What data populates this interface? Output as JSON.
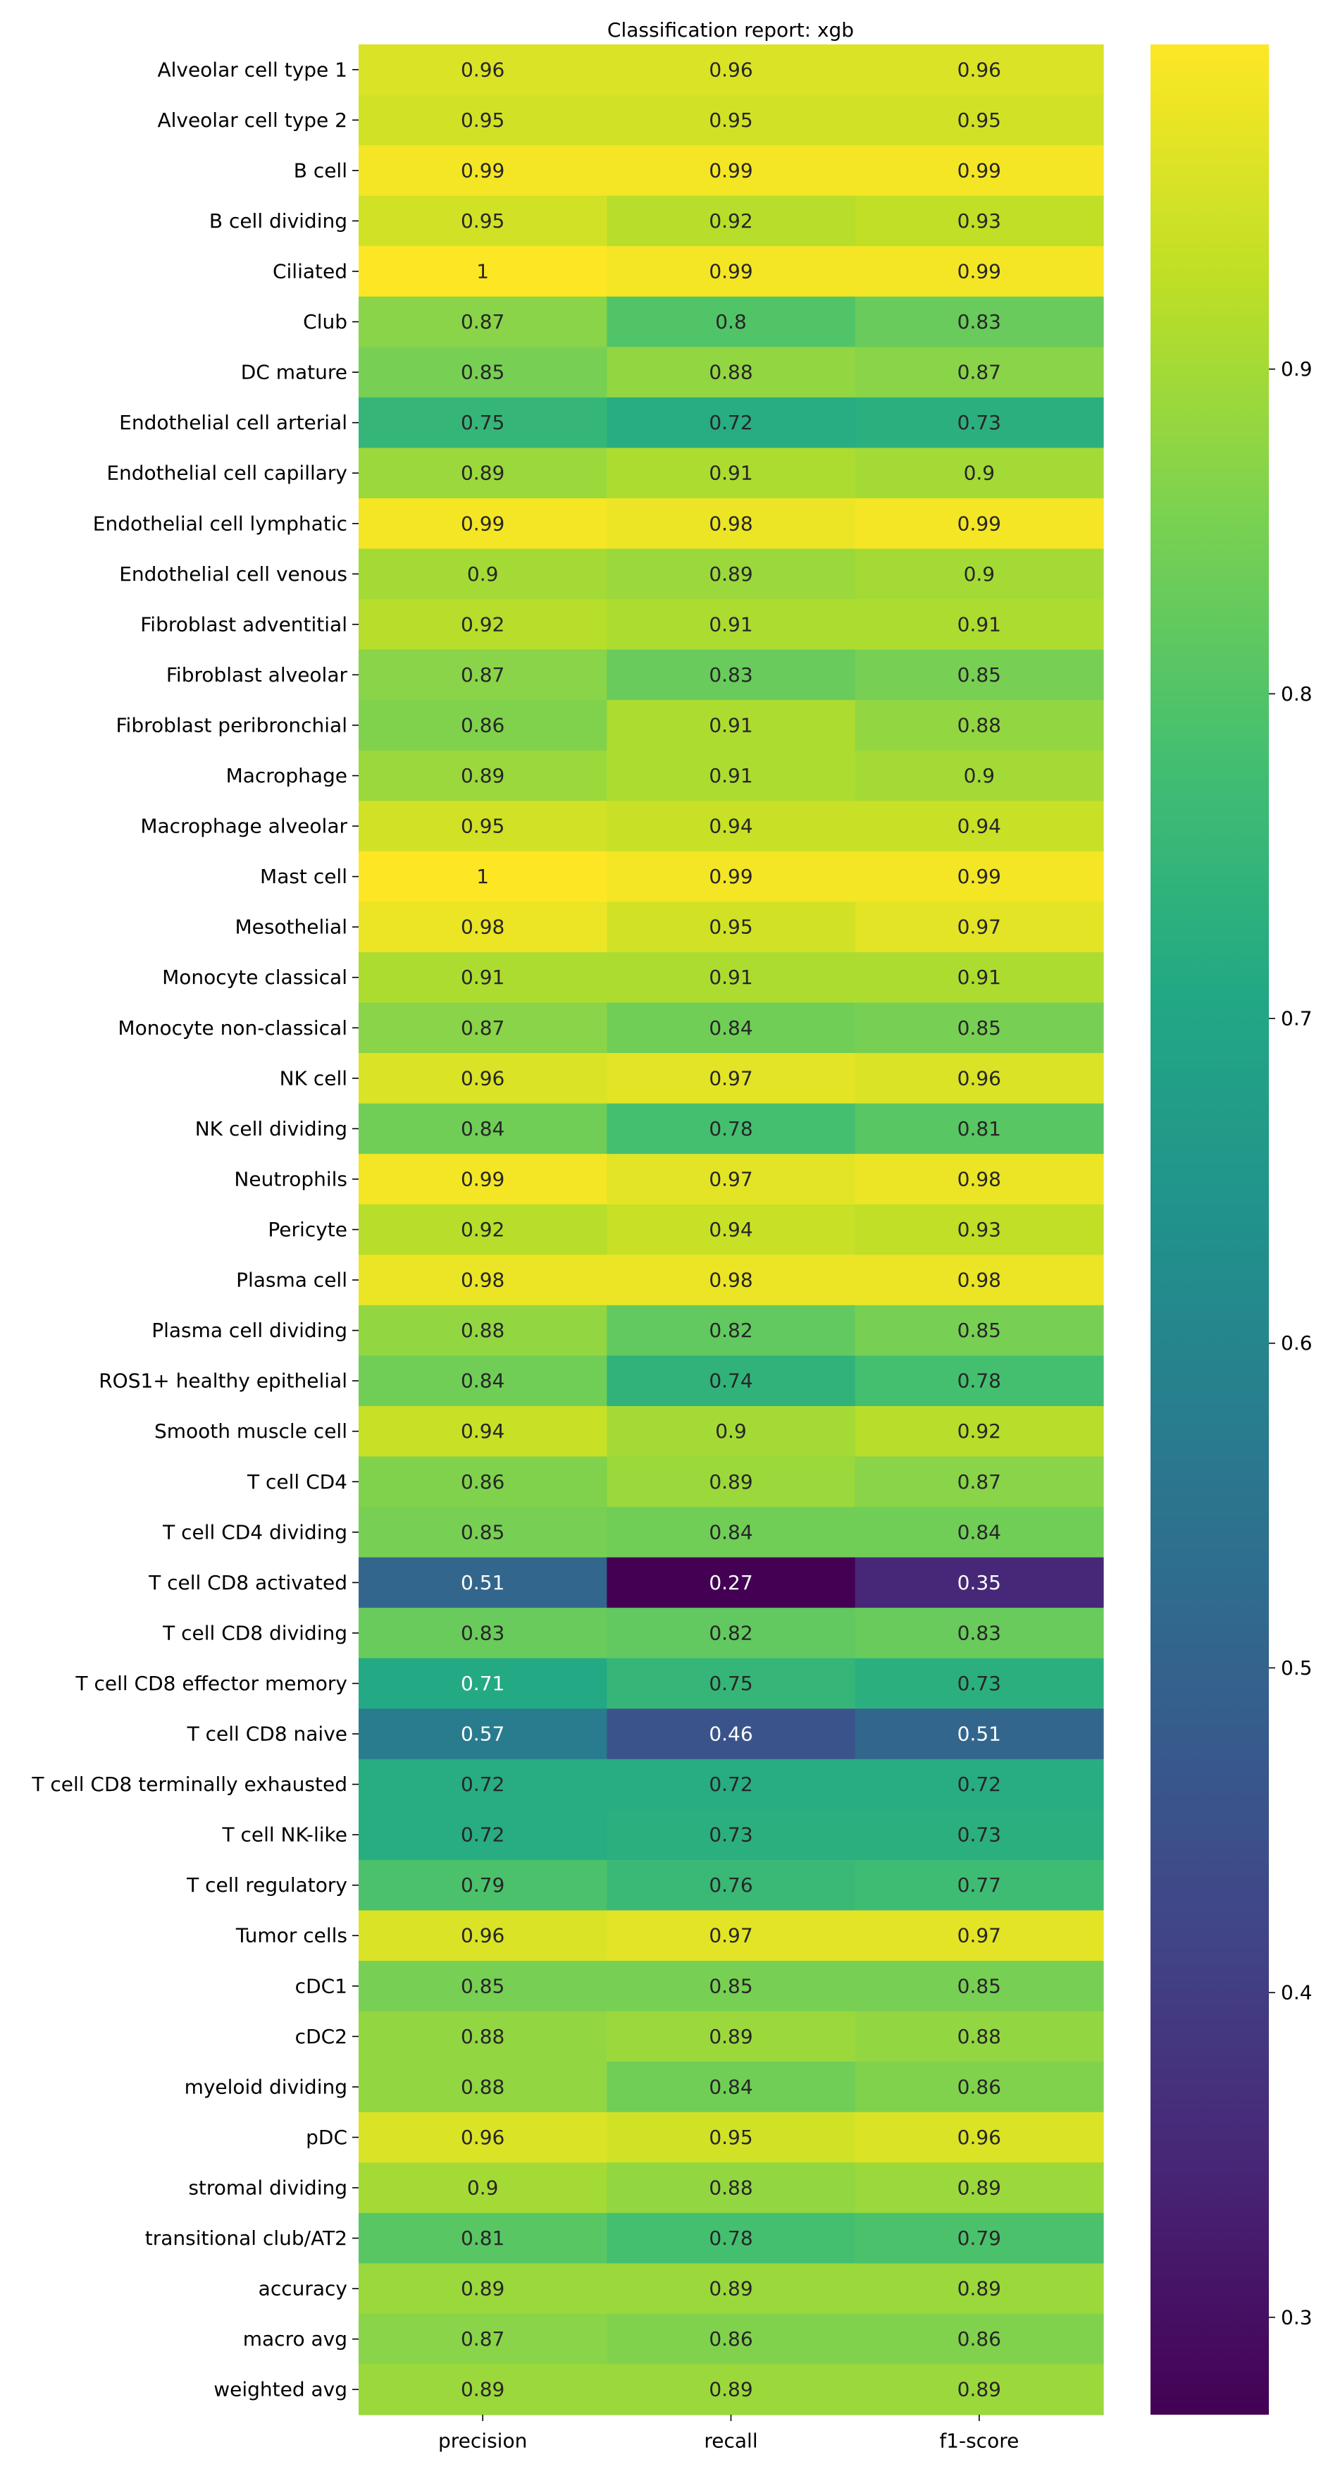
{
  "chart_data": {
    "type": "heatmap",
    "title": "Classification report: xgb",
    "columns": [
      "precision",
      "recall",
      "f1-score"
    ],
    "rows": [
      "Alveolar cell type 1",
      "Alveolar cell type 2",
      "B cell",
      "B cell dividing",
      "Ciliated",
      "Club",
      "DC mature",
      "Endothelial cell arterial",
      "Endothelial cell capillary",
      "Endothelial cell lymphatic",
      "Endothelial cell venous",
      "Fibroblast adventitial",
      "Fibroblast alveolar",
      "Fibroblast peribronchial",
      "Macrophage",
      "Macrophage alveolar",
      "Mast cell",
      "Mesothelial",
      "Monocyte classical",
      "Monocyte non-classical",
      "NK cell",
      "NK cell dividing",
      "Neutrophils",
      "Pericyte",
      "Plasma cell",
      "Plasma cell dividing",
      "ROS1+ healthy epithelial",
      "Smooth muscle cell",
      "T cell CD4",
      "T cell CD4 dividing",
      "T cell CD8 activated",
      "T cell CD8 dividing",
      "T cell CD8 effector memory",
      "T cell CD8 naive",
      "T cell CD8 terminally exhausted",
      "T cell NK-like",
      "T cell regulatory",
      "Tumor cells",
      "cDC1",
      "cDC2",
      "myeloid dividing",
      "pDC",
      "stromal dividing",
      "transitional club/AT2",
      "accuracy",
      "macro avg",
      "weighted avg"
    ],
    "values": [
      [
        0.96,
        0.96,
        0.96
      ],
      [
        0.95,
        0.95,
        0.95
      ],
      [
        0.99,
        0.99,
        0.99
      ],
      [
        0.95,
        0.92,
        0.93
      ],
      [
        1,
        0.99,
        0.99
      ],
      [
        0.87,
        0.8,
        0.83
      ],
      [
        0.85,
        0.88,
        0.87
      ],
      [
        0.75,
        0.72,
        0.73
      ],
      [
        0.89,
        0.91,
        0.9
      ],
      [
        0.99,
        0.98,
        0.99
      ],
      [
        0.9,
        0.89,
        0.9
      ],
      [
        0.92,
        0.91,
        0.91
      ],
      [
        0.87,
        0.83,
        0.85
      ],
      [
        0.86,
        0.91,
        0.88
      ],
      [
        0.89,
        0.91,
        0.9
      ],
      [
        0.95,
        0.94,
        0.94
      ],
      [
        1,
        0.99,
        0.99
      ],
      [
        0.98,
        0.95,
        0.97
      ],
      [
        0.91,
        0.91,
        0.91
      ],
      [
        0.87,
        0.84,
        0.85
      ],
      [
        0.96,
        0.97,
        0.96
      ],
      [
        0.84,
        0.78,
        0.81
      ],
      [
        0.99,
        0.97,
        0.98
      ],
      [
        0.92,
        0.94,
        0.93
      ],
      [
        0.98,
        0.98,
        0.98
      ],
      [
        0.88,
        0.82,
        0.85
      ],
      [
        0.84,
        0.74,
        0.78
      ],
      [
        0.94,
        0.9,
        0.92
      ],
      [
        0.86,
        0.89,
        0.87
      ],
      [
        0.85,
        0.84,
        0.84
      ],
      [
        0.51,
        0.27,
        0.35
      ],
      [
        0.83,
        0.82,
        0.83
      ],
      [
        0.71,
        0.75,
        0.73
      ],
      [
        0.57,
        0.46,
        0.51
      ],
      [
        0.72,
        0.72,
        0.72
      ],
      [
        0.72,
        0.73,
        0.73
      ],
      [
        0.79,
        0.76,
        0.77
      ],
      [
        0.96,
        0.97,
        0.97
      ],
      [
        0.85,
        0.85,
        0.85
      ],
      [
        0.88,
        0.89,
        0.88
      ],
      [
        0.88,
        0.84,
        0.86
      ],
      [
        0.96,
        0.95,
        0.96
      ],
      [
        0.9,
        0.88,
        0.89
      ],
      [
        0.81,
        0.78,
        0.79
      ],
      [
        0.89,
        0.89,
        0.89
      ],
      [
        0.87,
        0.86,
        0.86
      ],
      [
        0.89,
        0.89,
        0.89
      ]
    ],
    "colormap": "viridis",
    "color_range": [
      0.27,
      1.0
    ],
    "colorbar_ticks": [
      "0.3",
      "0.4",
      "0.5",
      "0.6",
      "0.7",
      "0.8",
      "0.9"
    ],
    "colorbar_tick_values": [
      0.3,
      0.4,
      0.5,
      0.6,
      0.7,
      0.8,
      0.9
    ],
    "annotation_text_light": "#ffffff",
    "annotation_text_dark": "#262626"
  }
}
